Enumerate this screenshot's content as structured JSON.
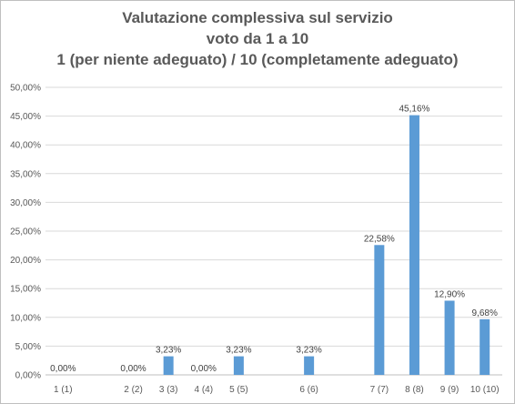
{
  "chart_data": {
    "type": "bar",
    "title_lines": [
      "Valutazione complessiva sul servizio",
      "voto da 1 a 10",
      "1 (per niente adeguato) / 10 (completamente adeguato)"
    ],
    "categories": [
      "1 (1)",
      "",
      "2 (2)",
      "3 (3)",
      "4 (4)",
      "5 (5)",
      "",
      "6 (6)",
      "",
      "7 (7)",
      "8 (8)",
      "9 (9)",
      "10 (10)"
    ],
    "values": [
      0,
      null,
      0,
      3.23,
      0,
      3.23,
      null,
      3.23,
      null,
      22.58,
      45.16,
      12.9,
      9.68
    ],
    "data_labels": [
      "0,00%",
      "",
      "0,00%",
      "3,23%",
      "0,00%",
      "3,23%",
      "",
      "3,23%",
      "",
      "22,58%",
      "45,16%",
      "12,90%",
      "9,68%"
    ],
    "ylim": [
      0,
      50
    ],
    "yticks": [
      "0,00%",
      "5,00%",
      "10,00%",
      "15,00%",
      "20,00%",
      "25,00%",
      "30,00%",
      "35,00%",
      "40,00%",
      "45,00%",
      "50,00%"
    ],
    "grid": true,
    "legend": "none",
    "bar_color": "#5b9bd5",
    "grid_color": "#d9d9d9",
    "axis_color": "#bfbfbf"
  }
}
